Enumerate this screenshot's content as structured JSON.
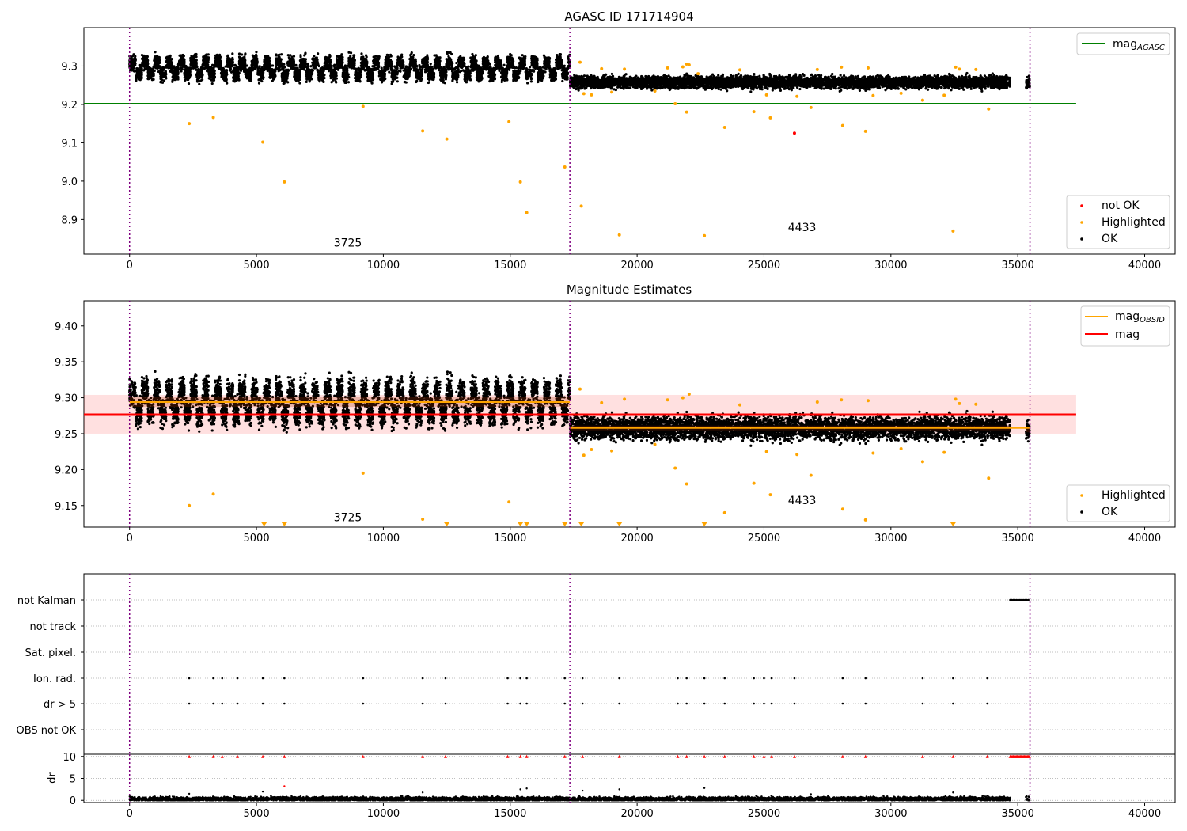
{
  "chart_data": [
    {
      "type": "scatter",
      "title": "AGASC ID 171714904",
      "xlabel": "",
      "ylabel": "",
      "xlim": [
        -1800,
        41200
      ],
      "ylim": [
        8.81,
        9.4
      ],
      "xticks": [
        0,
        5000,
        10000,
        15000,
        20000,
        25000,
        30000,
        35000,
        40000
      ],
      "yticks": [
        8.9,
        9.0,
        9.1,
        9.2,
        9.3
      ],
      "yticklabels": [
        "8.9",
        "9.0",
        "9.1",
        "9.2",
        "9.3"
      ],
      "obsid_boundaries": [
        0,
        17350,
        35480
      ],
      "obsid_labels": [
        {
          "text": "3725",
          "x": 8600,
          "y": 8.83
        },
        {
          "text": "4433",
          "x": 26500,
          "y": 8.87
        }
      ],
      "hlines": [
        {
          "name": "mag_AGASC",
          "value": 9.202,
          "xrange": [
            -1800,
            37300
          ],
          "color": "#008000"
        }
      ],
      "legend_upper": {
        "position": "upper right",
        "entries": [
          {
            "base": "mag",
            "sub": "AGASC",
            "color": "#008000"
          }
        ]
      },
      "legend_lower": {
        "position": "lower right",
        "entries": [
          {
            "label": "not OK",
            "color": "#ff0000"
          },
          {
            "label": "Highlighted",
            "color": "#ffa500"
          },
          {
            "label": "OK",
            "color": "#000000"
          }
        ]
      },
      "series": [
        {
          "name": "OK",
          "color": "#000000",
          "segments": [
            {
              "x_range": [
                0,
                17350
              ],
              "mean": 9.294,
              "spread": 0.027,
              "cycle": 480
            },
            {
              "x_range": [
                17350,
                34700
              ],
              "mean": 9.258,
              "spread": 0.013,
              "cycle": 0
            },
            {
              "x_range": [
                35320,
                35470
              ],
              "mean": 9.255,
              "spread": 0.012,
              "cycle": 0
            }
          ]
        },
        {
          "name": "Highlighted",
          "color": "#ffa500",
          "points": [
            [
              2350,
              9.15
            ],
            [
              3300,
              9.166
            ],
            [
              5250,
              9.102
            ],
            [
              6100,
              8.998
            ],
            [
              9200,
              9.195
            ],
            [
              11550,
              9.131
            ],
            [
              12500,
              9.11
            ],
            [
              14950,
              9.155
            ],
            [
              15400,
              8.998
            ],
            [
              15650,
              8.918
            ],
            [
              17150,
              9.037
            ],
            [
              17800,
              8.935
            ],
            [
              19300,
              8.86
            ],
            [
              22650,
              8.858
            ],
            [
              23450,
              9.14
            ],
            [
              24600,
              9.181
            ],
            [
              25250,
              9.165
            ],
            [
              28100,
              9.145
            ],
            [
              29000,
              9.13
            ],
            [
              32450,
              8.87
            ],
            [
              33850,
              9.188
            ],
            [
              21500,
              9.202
            ],
            [
              21950,
              9.18
            ],
            [
              26850,
              9.192
            ],
            [
              17900,
              9.228
            ],
            [
              18200,
              9.225
            ],
            [
              18600,
              9.293
            ],
            [
              19000,
              9.232
            ],
            [
              19500,
              9.292
            ],
            [
              20700,
              9.235
            ],
            [
              21200,
              9.295
            ],
            [
              21800,
              9.298
            ],
            [
              22050,
              9.303
            ],
            [
              22400,
              9.28
            ],
            [
              24050,
              9.29
            ],
            [
              25100,
              9.225
            ],
            [
              26300,
              9.221
            ],
            [
              27100,
              9.291
            ],
            [
              28050,
              9.297
            ],
            [
              29100,
              9.295
            ],
            [
              29300,
              9.223
            ],
            [
              30400,
              9.229
            ],
            [
              31250,
              9.211
            ],
            [
              32100,
              9.224
            ],
            [
              32550,
              9.297
            ],
            [
              32700,
              9.292
            ],
            [
              33350,
              9.291
            ],
            [
              17750,
              9.31
            ],
            [
              21950,
              9.305
            ]
          ]
        },
        {
          "name": "not OK",
          "color": "#ff0000",
          "points": [
            [
              26200,
              9.125
            ]
          ]
        }
      ]
    },
    {
      "type": "scatter",
      "title": "Magnitude Estimates",
      "xlabel": "",
      "ylabel": "",
      "xlim": [
        -1800,
        41200
      ],
      "ylim": [
        9.12,
        9.435
      ],
      "xticks": [
        0,
        5000,
        10000,
        15000,
        20000,
        25000,
        30000,
        35000,
        40000
      ],
      "yticks": [
        9.15,
        9.2,
        9.25,
        9.3,
        9.35,
        9.4
      ],
      "yticklabels": [
        "9.15",
        "9.20",
        "9.25",
        "9.30",
        "9.35",
        "9.40"
      ],
      "obsid_boundaries": [
        0,
        17350,
        35480
      ],
      "obsid_labels": [
        {
          "text": "3725",
          "x": 8600,
          "y": 9.128
        },
        {
          "text": "4433",
          "x": 26500,
          "y": 9.152
        }
      ],
      "mag_band": {
        "center": 9.277,
        "low": 9.25,
        "high": 9.304,
        "xrange": [
          -1800,
          37300
        ],
        "color": "#ff0000"
      },
      "hlines": [
        {
          "name": "mag",
          "value": 9.277,
          "xrange": [
            -1800,
            37300
          ],
          "color": "#ff0000"
        },
        {
          "name": "mag_OBSID 3725",
          "value": 9.294,
          "xrange": [
            0,
            17350
          ],
          "color": "#ffa500"
        },
        {
          "name": "mag_OBSID 4433",
          "value": 9.258,
          "xrange": [
            17350,
            35480
          ],
          "color": "#ffa500"
        }
      ],
      "legend_upper": {
        "position": "upper right",
        "entries": [
          {
            "base": "mag",
            "sub": "OBSID",
            "color": "#ffa500"
          },
          {
            "base": "mag",
            "sub": "",
            "color": "#ff0000"
          }
        ]
      },
      "legend_lower": {
        "position": "lower right",
        "entries": [
          {
            "label": "Highlighted",
            "color": "#ffa500"
          },
          {
            "label": "OK",
            "color": "#000000"
          }
        ]
      },
      "clipped_markers_x": [
        5300,
        6100,
        12500,
        15400,
        15650,
        17150,
        17800,
        19300,
        22650,
        32450
      ],
      "series": [
        {
          "name": "OK",
          "color": "#000000",
          "segments": [
            {
              "x_range": [
                0,
                17350
              ],
              "mean": 9.294,
              "spread": 0.027,
              "cycle": 480
            },
            {
              "x_range": [
                17350,
                34700
              ],
              "mean": 9.258,
              "spread": 0.013,
              "cycle": 0
            },
            {
              "x_range": [
                35320,
                35470
              ],
              "mean": 9.255,
              "spread": 0.012,
              "cycle": 0
            }
          ]
        },
        {
          "name": "Highlighted",
          "color": "#ffa500",
          "points": [
            [
              2350,
              9.15
            ],
            [
              3300,
              9.166
            ],
            [
              9200,
              9.195
            ],
            [
              11550,
              9.131
            ],
            [
              14950,
              9.155
            ],
            [
              21500,
              9.202
            ],
            [
              21950,
              9.18
            ],
            [
              23450,
              9.14
            ],
            [
              24600,
              9.181
            ],
            [
              25250,
              9.165
            ],
            [
              26850,
              9.192
            ],
            [
              28100,
              9.145
            ],
            [
              29000,
              9.13
            ],
            [
              31250,
              9.211
            ],
            [
              33850,
              9.188
            ],
            [
              17900,
              9.22
            ],
            [
              18200,
              9.228
            ],
            [
              18600,
              9.293
            ],
            [
              19000,
              9.226
            ],
            [
              19500,
              9.298
            ],
            [
              20700,
              9.235
            ],
            [
              21200,
              9.297
            ],
            [
              21800,
              9.3
            ],
            [
              22050,
              9.305
            ],
            [
              24050,
              9.29
            ],
            [
              25100,
              9.225
            ],
            [
              26300,
              9.221
            ],
            [
              27100,
              9.294
            ],
            [
              28050,
              9.297
            ],
            [
              29100,
              9.296
            ],
            [
              29300,
              9.223
            ],
            [
              30400,
              9.229
            ],
            [
              32100,
              9.224
            ],
            [
              32550,
              9.298
            ],
            [
              32700,
              9.292
            ],
            [
              33350,
              9.291
            ],
            [
              17750,
              9.312
            ]
          ]
        }
      ]
    },
    {
      "type": "scatter",
      "title": "",
      "xlabel": "",
      "ylabel": "",
      "xlim": [
        -1800,
        41200
      ],
      "xticks": [
        0,
        5000,
        10000,
        15000,
        20000,
        25000,
        30000,
        35000,
        40000
      ],
      "obsid_boundaries": [
        0,
        17350,
        35480
      ],
      "flag_rows": [
        "not Kalman",
        "not track",
        "Sat. pixel.",
        "Ion. rad.",
        "dr > 5",
        "OBS not OK"
      ],
      "flags": {
        "not Kalman": {
          "x_range": [
            34700,
            35470
          ]
        },
        "not track": {
          "x": []
        },
        "Sat. pixel.": {
          "x": []
        },
        "Ion. rad.": {
          "x": [
            2350,
            3300,
            3650,
            4250,
            5250,
            6100,
            9200,
            11550,
            12450,
            14900,
            15400,
            15650,
            17150,
            17850,
            19300,
            21600,
            21950,
            22650,
            23450,
            24600,
            25000,
            25300,
            26200,
            28100,
            29000,
            31250,
            32450,
            33800
          ]
        },
        "dr > 5": {
          "x": [
            2350,
            3300,
            3650,
            4250,
            5250,
            6100,
            9200,
            11550,
            12450,
            14900,
            15400,
            15650,
            17150,
            17850,
            19300,
            21600,
            21950,
            22650,
            23450,
            24600,
            25000,
            25300,
            26200,
            28100,
            29000,
            31250,
            32450,
            33800
          ]
        },
        "OBS not OK": {
          "x": []
        }
      },
      "dr": {
        "ylabel": "dr",
        "yticks": [
          0,
          5,
          10
        ],
        "ylim": [
          -0.5,
          10.5
        ],
        "clipped_x": [
          2350,
          3300,
          3650,
          4250,
          5250,
          6100,
          9200,
          11550,
          12450,
          14900,
          15400,
          15650,
          17150,
          17850,
          19300,
          21600,
          21950,
          22650,
          23450,
          24600,
          25000,
          25300,
          26200,
          28100,
          29000,
          31250,
          32450,
          33800
        ],
        "clipped_range": [
          34700,
          35470
        ],
        "outliers": [
          [
            6100,
            3.2
          ],
          [
            2350,
            1.5
          ],
          [
            5250,
            2.0
          ],
          [
            11550,
            1.8
          ],
          [
            15400,
            2.5
          ],
          [
            15650,
            2.7
          ],
          [
            17850,
            2.2
          ],
          [
            19300,
            2.5
          ],
          [
            22650,
            2.8
          ],
          [
            26850,
            1.4
          ],
          [
            32450,
            1.8
          ]
        ],
        "baseline": {
          "x_range": [
            0,
            34700
          ],
          "mean": 0.3,
          "spread": 0.25
        }
      }
    }
  ]
}
